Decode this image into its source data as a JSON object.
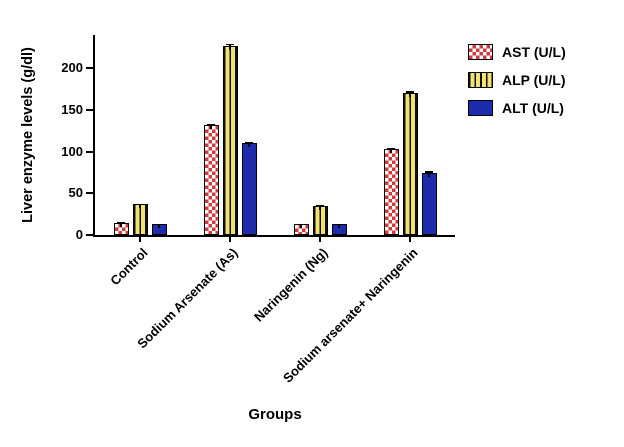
{
  "chart_data": {
    "type": "bar",
    "title": "",
    "xlabel": "Groups",
    "ylabel": "Liver enzyme levels (g/dl)",
    "ylim": [
      0,
      240
    ],
    "yticks": [
      0,
      50,
      100,
      150,
      200
    ],
    "grid": false,
    "legend_position": "top-right",
    "categories": [
      "Control",
      "Sodium Arsenate (As)",
      "Naringenin (Ng)",
      "Sodium arsenate+ Naringenin"
    ],
    "series": [
      {
        "name": "AST (U/L)",
        "pattern": "checker",
        "color": "#cf3b3b",
        "values": [
          15,
          132,
          13,
          103
        ],
        "errors": [
          2,
          3,
          2,
          3
        ]
      },
      {
        "name": "ALP (U/L)",
        "pattern": "vstripe",
        "color": "#f1e370",
        "values": [
          37,
          227,
          35,
          170
        ],
        "errors": [
          2,
          4,
          2,
          4
        ]
      },
      {
        "name": "ALT (U/L)",
        "pattern": "solid",
        "color": "#1c2cad",
        "values": [
          13,
          110,
          13,
          75
        ],
        "errors": [
          2,
          3,
          2,
          3
        ]
      }
    ]
  }
}
